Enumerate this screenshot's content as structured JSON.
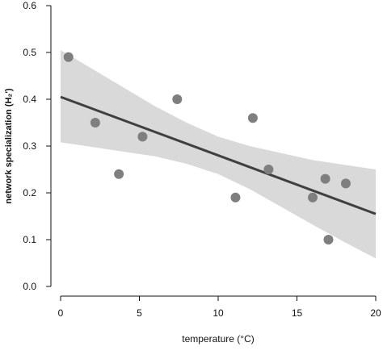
{
  "chart_data": {
    "type": "scatter",
    "title": "",
    "xlabel": "temperature (°C)",
    "ylabel": "network specialization (H₂')",
    "xlim": [
      0,
      20
    ],
    "ylim": [
      0,
      0.6
    ],
    "x_ticks": [
      "0",
      "5",
      "10",
      "15",
      "20"
    ],
    "y_ticks": [
      "0.0",
      "0.1",
      "0.2",
      "0.3",
      "0.4",
      "0.5",
      "0.6"
    ],
    "grid": false,
    "legend": "none",
    "series": [
      {
        "type": "scatter",
        "color": "#7f7f7f",
        "points": [
          {
            "x": 0.5,
            "y": 0.49
          },
          {
            "x": 2.2,
            "y": 0.35
          },
          {
            "x": 3.7,
            "y": 0.24
          },
          {
            "x": 5.2,
            "y": 0.32
          },
          {
            "x": 7.4,
            "y": 0.4
          },
          {
            "x": 11.1,
            "y": 0.19
          },
          {
            "x": 12.2,
            "y": 0.36
          },
          {
            "x": 13.2,
            "y": 0.25
          },
          {
            "x": 16.0,
            "y": 0.19
          },
          {
            "x": 16.8,
            "y": 0.23
          },
          {
            "x": 17.0,
            "y": 0.1
          },
          {
            "x": 18.1,
            "y": 0.22
          }
        ]
      }
    ],
    "regression_line": {
      "color": "#404040",
      "points": [
        {
          "x": 0,
          "y": 0.405
        },
        {
          "x": 20,
          "y": 0.155
        }
      ]
    },
    "confidence_band": {
      "color": "#d9d9d9",
      "x": [
        0,
        2,
        4,
        6,
        8,
        10,
        12,
        14,
        16,
        18,
        20
      ],
      "upper": [
        0.505,
        0.465,
        0.425,
        0.385,
        0.35,
        0.32,
        0.3,
        0.285,
        0.27,
        0.26,
        0.25
      ],
      "lower": [
        0.308,
        0.298,
        0.288,
        0.278,
        0.262,
        0.24,
        0.208,
        0.17,
        0.132,
        0.095,
        0.06
      ]
    }
  }
}
